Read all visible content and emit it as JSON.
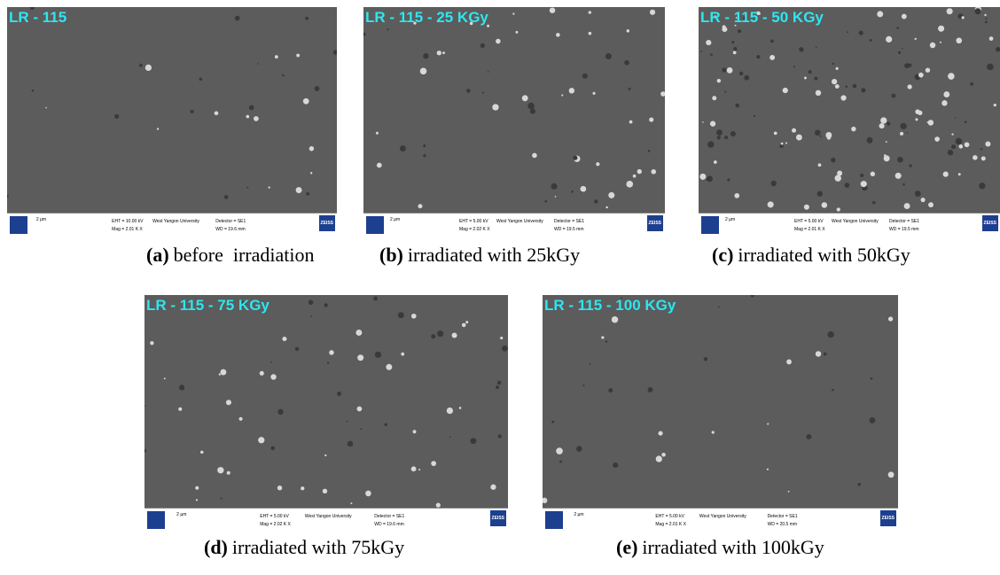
{
  "panels": [
    {
      "image_label": "LR - 115",
      "scale": "2 µm",
      "eht": "EHT = 10.00 kV",
      "mag": "Mag = 2.01 K X",
      "university": "West Yangon University",
      "detector": "Detector = SE1",
      "wd": "WD = 19.6 mm",
      "brand": "ZEISS",
      "caption_letter": "(a)",
      "caption_text": "before  irradiation"
    },
    {
      "image_label": "LR - 115 - 25 KGy",
      "scale": "2 µm",
      "eht": "EHT = 5.00 kV",
      "mag": "Mag = 2.02 K X",
      "university": "West Yangon University",
      "detector": "Detector = SE1",
      "wd": "WD = 19.5 mm",
      "brand": "ZEISS",
      "caption_letter": "(b)",
      "caption_text": "irradiated with 25kGy"
    },
    {
      "image_label": "LR - 115 - 50 KGy",
      "scale": "2 µm",
      "eht": "EHT = 5.00 kV",
      "mag": "Mag = 2.01 K X",
      "university": "West Yangon University",
      "detector": "Detector = SE1",
      "wd": "WD = 19.5 mm",
      "brand": "ZEISS",
      "caption_letter": "(c)",
      "caption_text": "irradiated with 50kGy"
    },
    {
      "image_label": "LR - 115 - 75 KGy",
      "scale": "2 µm",
      "eht": "EHT = 5.00 kV",
      "mag": "Mag = 2.02 K X",
      "university": "West Yangon University",
      "detector": "Detector = SE1",
      "wd": "WD = 19.6 mm",
      "brand": "ZEISS",
      "caption_letter": "(d)",
      "caption_text": "irradiated with 75kGy"
    },
    {
      "image_label": "LR - 115 - 100 KGy",
      "scale": "2 µm",
      "eht": "EHT = 5.00 kV",
      "mag": "Mag = 2.01 K X",
      "university": "West Yangon University",
      "detector": "Detector = SE1",
      "wd": "WD = 20.5 mm",
      "brand": "ZEISS",
      "caption_letter": "(e)",
      "caption_text": "irradiated with 100kGy"
    }
  ]
}
